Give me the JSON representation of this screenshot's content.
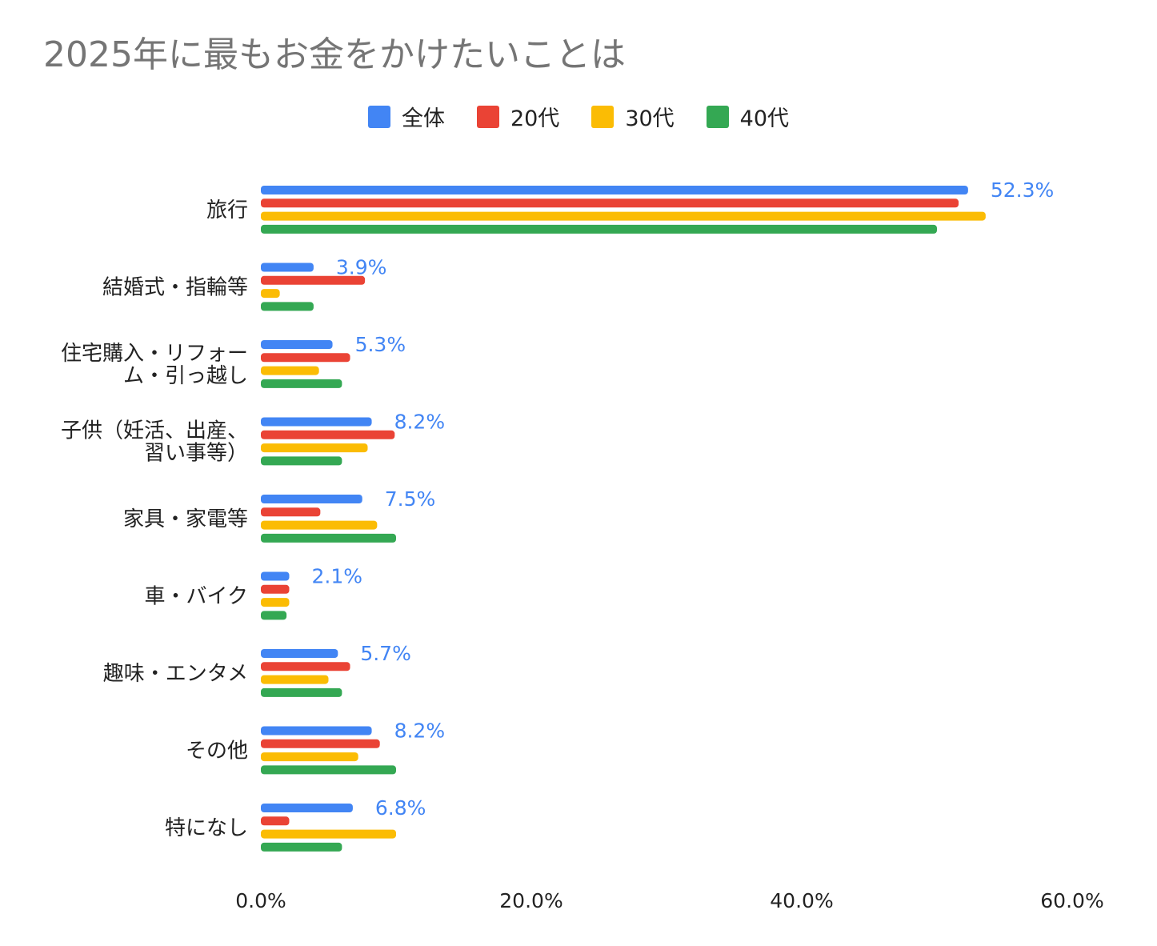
{
  "chart_data": {
    "type": "bar",
    "orientation": "horizontal",
    "title": "2025年に最もお金をかけたいことは",
    "xlabel": "",
    "ylabel": "",
    "xlim": [
      0,
      60
    ],
    "x_ticks": [
      "0.0%",
      "20.0%",
      "40.0%",
      "60.0%"
    ],
    "grid": false,
    "legend_position": "top-center",
    "categories": [
      [
        "旅行"
      ],
      [
        "結婚式・指輪等"
      ],
      [
        "住宅購入・リフォー",
        "ム・引っ越し"
      ],
      [
        "子供（妊活、出産、",
        "習い事等）"
      ],
      [
        "家具・家電等"
      ],
      [
        "車・バイク"
      ],
      [
        "趣味・エンタメ"
      ],
      [
        "その他"
      ],
      [
        "特になし"
      ]
    ],
    "series": [
      {
        "name": "全体",
        "color": "#4285F4",
        "values": [
          52.3,
          3.9,
          5.3,
          8.2,
          7.5,
          2.1,
          5.7,
          8.2,
          6.8
        ]
      },
      {
        "name": "20代",
        "color": "#EA4335",
        "values": [
          51.6,
          7.7,
          6.6,
          9.9,
          4.4,
          2.1,
          6.6,
          8.8,
          2.1
        ]
      },
      {
        "name": "30代",
        "color": "#FBBC04",
        "values": [
          53.6,
          1.4,
          4.3,
          7.9,
          8.6,
          2.1,
          5.0,
          7.2,
          10.0
        ]
      },
      {
        "name": "40代",
        "color": "#34A853",
        "values": [
          50.0,
          3.9,
          6.0,
          6.0,
          10.0,
          1.9,
          6.0,
          10.0,
          6.0
        ]
      }
    ],
    "data_labels": [
      "52.3%",
      "3.9%",
      "5.3%",
      "8.2%",
      "7.5%",
      "2.1%",
      "5.7%",
      "8.2%",
      "6.8%"
    ]
  }
}
